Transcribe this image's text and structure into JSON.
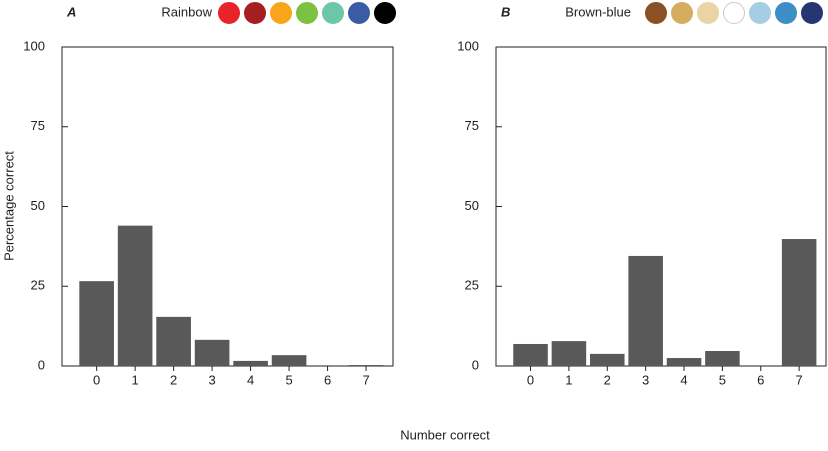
{
  "chart_data": [
    {
      "type": "bar",
      "title": "A",
      "palette_name": "Rainbow",
      "palette": [
        "#e8232a",
        "#a61e22",
        "#f9a51a",
        "#7dc143",
        "#6cc6a8",
        "#3a5ba5",
        "#000000"
      ],
      "x": [
        0,
        1,
        2,
        3,
        4,
        5,
        6,
        7
      ],
      "values": [
        26.6,
        44,
        15.4,
        8.2,
        1.6,
        3.4,
        0,
        0.3
      ],
      "color": "#595959",
      "xlim": [
        -0.9,
        7.7
      ],
      "xticks": [
        0,
        1,
        2,
        3,
        4,
        5,
        6,
        7
      ],
      "ylim": [
        0,
        100
      ],
      "yticks": [
        0,
        25,
        50,
        75,
        100
      ]
    },
    {
      "type": "bar",
      "title": "B",
      "palette_name": "Brown-blue",
      "palette": [
        "#8a5224",
        "#d5ad5f",
        "#ead3a4",
        "#ffffff",
        "#a5cde4",
        "#3d8ec6",
        "#263673"
      ],
      "x": [
        0,
        1,
        2,
        3,
        4,
        5,
        6,
        7
      ],
      "values": [
        6.9,
        7.8,
        3.8,
        34.5,
        2.5,
        4.7,
        0,
        39.8
      ],
      "color": "#595959",
      "xlim": [
        -0.9,
        7.7
      ],
      "xticks": [
        0,
        1,
        2,
        3,
        4,
        5,
        6,
        7
      ],
      "ylim": [
        0,
        100
      ],
      "yticks": [
        0,
        25,
        50,
        75,
        100
      ]
    }
  ],
  "xlabel": "Number correct",
  "ylabel": "Percentage correct"
}
